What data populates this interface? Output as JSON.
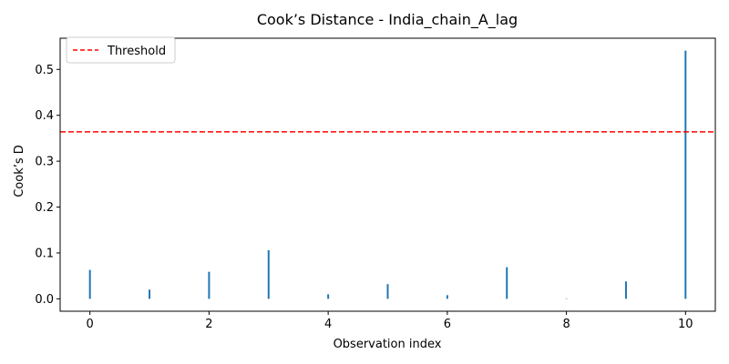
{
  "chart_data": {
    "type": "bar",
    "title": "Cook’s Distance - India_chain_A_lag",
    "xlabel": "Observation index",
    "ylabel": "Cook’s D",
    "x": [
      0,
      1,
      2,
      3,
      4,
      5,
      6,
      7,
      8,
      9,
      10
    ],
    "values": [
      0.063,
      0.02,
      0.059,
      0.106,
      0.01,
      0.032,
      0.008,
      0.069,
      0.001,
      0.038,
      0.541
    ],
    "xlim": [
      -0.5,
      10.5
    ],
    "ylim": [
      -0.027,
      0.568
    ],
    "xticks": [
      0,
      2,
      4,
      6,
      8,
      10
    ],
    "xtick_labels": [
      "0",
      "2",
      "4",
      "6",
      "8",
      "10"
    ],
    "yticks": [
      0.0,
      0.1,
      0.2,
      0.3,
      0.4,
      0.5
    ],
    "ytick_labels": [
      "0.0",
      "0.1",
      "0.2",
      "0.3",
      "0.4",
      "0.5"
    ],
    "threshold": 0.364,
    "legend": {
      "position": "upper-left",
      "entries": [
        "Threshold"
      ]
    },
    "grid": false,
    "colors": {
      "stem": "#1f77b4",
      "threshold": "#ff0000"
    }
  }
}
